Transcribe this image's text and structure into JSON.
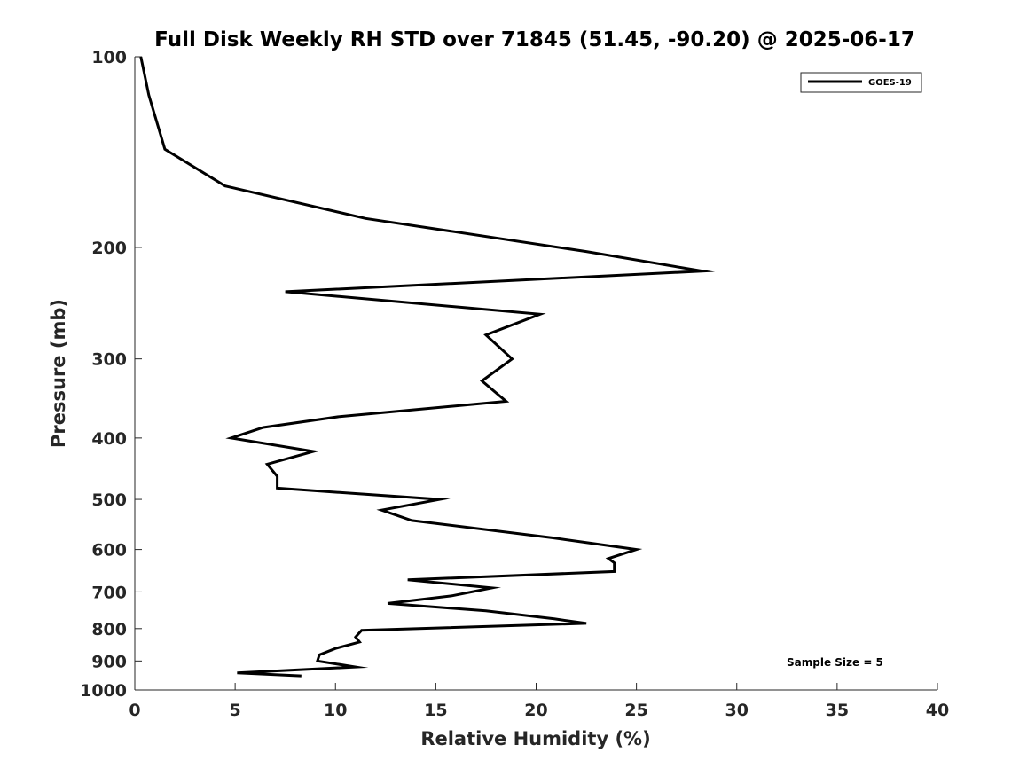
{
  "chart_data": {
    "type": "line",
    "title": "Full Disk Weekly RH STD over 71845 (51.45, -90.20) @ 2025-06-17",
    "xlabel": "Relative Humidity (%)",
    "ylabel": "Pressure (mb)",
    "xlim": [
      0,
      40
    ],
    "ylim": [
      100,
      1000
    ],
    "yscale": "log",
    "y_reversed": true,
    "xticks": [
      0,
      5,
      10,
      15,
      20,
      25,
      30,
      35,
      40
    ],
    "yticks": [
      100,
      200,
      300,
      400,
      500,
      600,
      700,
      800,
      900,
      1000
    ],
    "legend": {
      "entries": [
        "GOES-19"
      ],
      "location": "top-right"
    },
    "annotation": "Sample Size = 5",
    "grid": false,
    "series": [
      {
        "name": "GOES-19",
        "color": "#000000",
        "x": [
          0.3,
          0.7,
          1.5,
          4.5,
          11.5,
          22.5,
          28.3,
          7.5,
          20.2,
          17.5,
          18.8,
          17.3,
          18.5,
          10.2,
          6.4,
          4.8,
          8.9,
          6.6,
          7.1,
          7.1,
          15.2,
          12.3,
          13.8,
          20.8,
          25.0,
          23.6,
          23.9,
          23.9,
          13.6,
          17.8,
          15.8,
          12.6,
          17.5,
          20.9,
          22.5,
          11.3,
          11.0,
          11.2,
          10.0,
          9.2,
          9.1,
          11.0,
          5.1,
          8.3
        ],
        "y": [
          100,
          115,
          140,
          160,
          180,
          203,
          218,
          235,
          255,
          275,
          300,
          325,
          350,
          370,
          385,
          400,
          420,
          440,
          460,
          480,
          500,
          520,
          540,
          575,
          600,
          620,
          630,
          650,
          670,
          690,
          710,
          730,
          750,
          772,
          785,
          805,
          825,
          840,
          860,
          880,
          900,
          920,
          940,
          950
        ]
      }
    ]
  }
}
